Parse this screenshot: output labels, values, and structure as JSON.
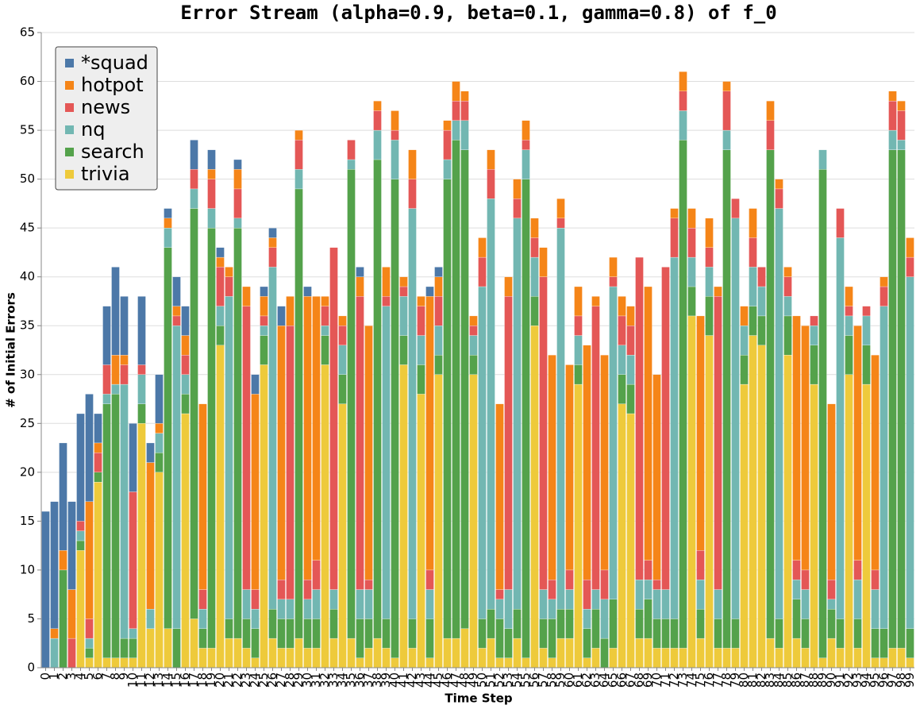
{
  "chart_data": {
    "type": "stacked_bar",
    "title": "Error Stream (alpha=0.9, beta=0.1, gamma=0.8) of f_0",
    "x_label": "Time Step",
    "y_label": "# of Initial Errors",
    "x": [
      0,
      1,
      2,
      3,
      4,
      5,
      6,
      7,
      8,
      9,
      10,
      11,
      12,
      13,
      14,
      15,
      16,
      17,
      18,
      19,
      20,
      21,
      22,
      23,
      24,
      25,
      26,
      27,
      28,
      29,
      30,
      31,
      32,
      33,
      34,
      35,
      36,
      37,
      38,
      39,
      40,
      41,
      42,
      43,
      44,
      45,
      46,
      47,
      48,
      49,
      50,
      51,
      52,
      53,
      54,
      55,
      56,
      57,
      58,
      59,
      60,
      61,
      62,
      63,
      64,
      65,
      66,
      67,
      68,
      69,
      70,
      71,
      72,
      73,
      74,
      75,
      76,
      77,
      78,
      79,
      80,
      81,
      82,
      83,
      84,
      85,
      86,
      87,
      88,
      89,
      90,
      91,
      92,
      93,
      94,
      95,
      96,
      97,
      98,
      99
    ],
    "series": [
      {
        "name": "*squad",
        "color": "#4c78a8",
        "values": [
          16,
          13,
          11,
          9,
          11,
          11,
          3,
          6,
          9,
          6,
          7,
          7,
          2,
          5,
          1,
          3,
          3,
          3,
          0,
          2,
          1,
          0,
          1,
          0,
          2,
          1,
          1,
          2,
          0,
          0,
          1,
          0,
          0,
          0,
          0,
          0,
          1,
          0,
          0,
          0,
          0,
          0,
          0,
          0,
          1,
          1,
          0,
          0,
          0,
          0,
          0,
          0,
          0,
          0,
          0,
          0,
          0,
          0,
          0,
          0,
          0,
          0,
          0,
          0,
          0,
          0,
          0,
          0,
          0,
          0,
          0,
          0,
          0,
          0,
          0,
          0,
          0,
          0,
          0,
          0,
          0,
          0,
          0,
          0,
          0,
          0,
          0,
          0,
          0,
          0,
          0,
          0,
          0,
          0,
          0,
          0,
          0,
          0,
          0,
          0
        ]
      },
      {
        "name": "hotpot",
        "color": "#f58518",
        "values": [
          0,
          1,
          2,
          5,
          0,
          12,
          1,
          0,
          3,
          1,
          0,
          0,
          15,
          1,
          1,
          1,
          2,
          0,
          19,
          1,
          1,
          1,
          2,
          2,
          20,
          2,
          1,
          26,
          3,
          1,
          29,
          27,
          1,
          0,
          1,
          0,
          2,
          26,
          1,
          3,
          2,
          1,
          3,
          1,
          28,
          2,
          1,
          2,
          1,
          1,
          2,
          2,
          19,
          2,
          2,
          2,
          2,
          3,
          23,
          2,
          21,
          3,
          24,
          1,
          22,
          2,
          2,
          2,
          0,
          28,
          21,
          0,
          1,
          2,
          2,
          24,
          3,
          1,
          1,
          0,
          2,
          3,
          0,
          2,
          1,
          1,
          25,
          25,
          0,
          0,
          18,
          0,
          2,
          24,
          0,
          22,
          1,
          1,
          1,
          2
        ]
      },
      {
        "name": "news",
        "color": "#e45756",
        "values": [
          0,
          0,
          0,
          3,
          1,
          2,
          2,
          3,
          0,
          2,
          14,
          1,
          0,
          0,
          0,
          1,
          2,
          2,
          2,
          3,
          4,
          2,
          3,
          29,
          2,
          1,
          2,
          2,
          28,
          3,
          2,
          3,
          2,
          35,
          2,
          2,
          30,
          1,
          2,
          1,
          1,
          1,
          3,
          3,
          2,
          3,
          3,
          2,
          2,
          1,
          3,
          3,
          1,
          30,
          2,
          1,
          2,
          32,
          2,
          1,
          2,
          2,
          3,
          29,
          3,
          1,
          3,
          3,
          33,
          2,
          1,
          33,
          4,
          2,
          3,
          3,
          2,
          30,
          4,
          2,
          0,
          3,
          2,
          3,
          2,
          2,
          2,
          2,
          1,
          0,
          2,
          3,
          1,
          2,
          1,
          2,
          2,
          3,
          3,
          2
        ]
      },
      {
        "name": "nq",
        "color": "#72b7b2",
        "values": [
          0,
          3,
          0,
          0,
          1,
          1,
          0,
          1,
          1,
          26,
          1,
          3,
          2,
          2,
          2,
          31,
          2,
          2,
          2,
          2,
          2,
          33,
          1,
          3,
          2,
          1,
          35,
          2,
          2,
          2,
          2,
          3,
          1,
          2,
          3,
          1,
          3,
          3,
          3,
          32,
          4,
          4,
          42,
          3,
          3,
          3,
          2,
          2,
          3,
          2,
          34,
          42,
          2,
          4,
          40,
          3,
          4,
          3,
          2,
          39,
          2,
          3,
          2,
          2,
          4,
          32,
          3,
          3,
          3,
          2,
          3,
          3,
          37,
          3,
          3,
          3,
          3,
          3,
          2,
          41,
          3,
          4,
          3,
          0,
          42,
          2,
          2,
          3,
          2,
          2,
          1,
          39,
          2,
          4,
          3,
          4,
          33,
          2,
          1,
          36
        ]
      },
      {
        "name": "search",
        "color": "#54a24b",
        "values": [
          0,
          0,
          10,
          0,
          1,
          1,
          1,
          26,
          27,
          2,
          2,
          2,
          0,
          2,
          39,
          4,
          2,
          42,
          2,
          43,
          2,
          2,
          42,
          3,
          3,
          3,
          3,
          3,
          3,
          46,
          3,
          3,
          3,
          3,
          3,
          48,
          4,
          3,
          49,
          3,
          49,
          3,
          3,
          3,
          4,
          2,
          47,
          51,
          49,
          2,
          3,
          3,
          4,
          3,
          3,
          49,
          3,
          3,
          4,
          3,
          3,
          2,
          3,
          4,
          3,
          5,
          3,
          3,
          3,
          4,
          3,
          3,
          3,
          52,
          3,
          3,
          4,
          3,
          51,
          3,
          3,
          3,
          3,
          50,
          3,
          4,
          4,
          3,
          4,
          50,
          3,
          3,
          4,
          3,
          4,
          3,
          3,
          51,
          51,
          3
        ]
      },
      {
        "name": "trivia",
        "color": "#eeca3b",
        "values": [
          0,
          0,
          0,
          0,
          12,
          1,
          19,
          1,
          1,
          1,
          1,
          25,
          4,
          20,
          4,
          0,
          26,
          5,
          2,
          2,
          33,
          3,
          3,
          2,
          1,
          31,
          3,
          2,
          2,
          3,
          2,
          2,
          31,
          3,
          27,
          3,
          1,
          2,
          3,
          2,
          1,
          31,
          2,
          28,
          1,
          30,
          3,
          3,
          4,
          30,
          2,
          3,
          1,
          1,
          3,
          1,
          35,
          2,
          1,
          3,
          3,
          29,
          1,
          2,
          0,
          2,
          27,
          26,
          3,
          3,
          2,
          2,
          2,
          2,
          36,
          3,
          34,
          2,
          2,
          2,
          29,
          34,
          33,
          3,
          2,
          32,
          3,
          2,
          29,
          1,
          3,
          2,
          30,
          2,
          29,
          1,
          1,
          2,
          2,
          1
        ]
      }
    ],
    "ylim": [
      0,
      65
    ],
    "yticks": [
      0,
      5,
      10,
      15,
      20,
      25,
      30,
      35,
      40,
      45,
      50,
      55,
      60,
      65
    ],
    "grid": true,
    "legend": "top-left"
  }
}
